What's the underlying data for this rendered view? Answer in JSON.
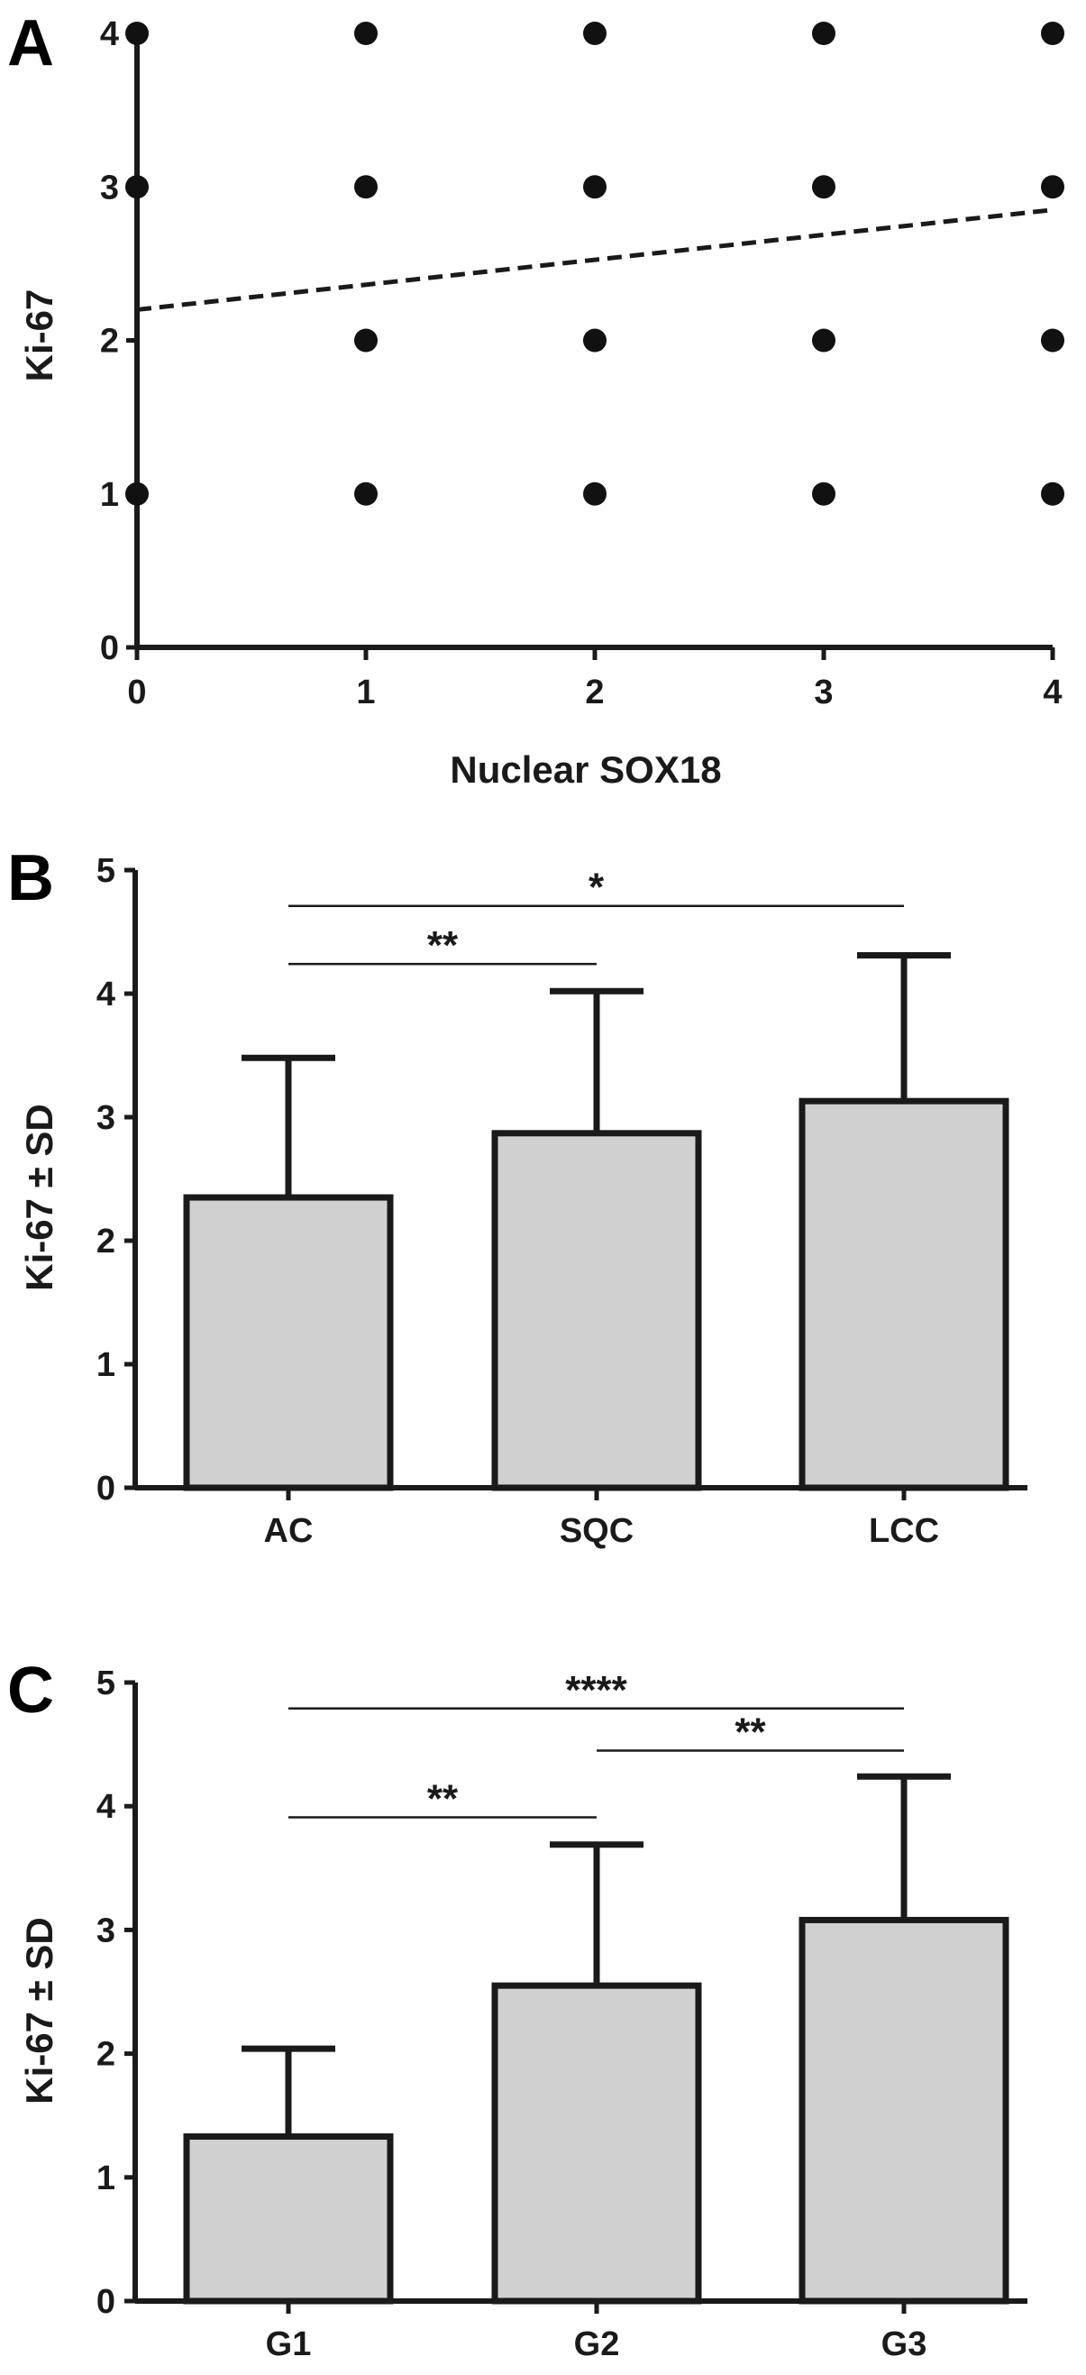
{
  "chart_data": [
    {
      "panel": "A",
      "type": "scatter",
      "xlabel": "Nuclear SOX18",
      "ylabel": "Ki-67",
      "xlim": [
        0,
        4
      ],
      "ylim": [
        0,
        4
      ],
      "xticks": [
        "0",
        "1",
        "2",
        "3",
        "4"
      ],
      "yticks": [
        "0",
        "1",
        "2",
        "3",
        "4"
      ],
      "points": [
        {
          "x": 0,
          "y": 1
        },
        {
          "x": 0,
          "y": 3
        },
        {
          "x": 0,
          "y": 4
        },
        {
          "x": 1,
          "y": 1
        },
        {
          "x": 1,
          "y": 2
        },
        {
          "x": 1,
          "y": 3
        },
        {
          "x": 1,
          "y": 4
        },
        {
          "x": 2,
          "y": 1
        },
        {
          "x": 2,
          "y": 2
        },
        {
          "x": 2,
          "y": 3
        },
        {
          "x": 2,
          "y": 4
        },
        {
          "x": 3,
          "y": 1
        },
        {
          "x": 3,
          "y": 2
        },
        {
          "x": 3,
          "y": 3
        },
        {
          "x": 3,
          "y": 4
        },
        {
          "x": 4,
          "y": 1
        },
        {
          "x": 4,
          "y": 2
        },
        {
          "x": 4,
          "y": 3
        },
        {
          "x": 4,
          "y": 4
        }
      ],
      "trend_line": {
        "style": "dashed",
        "x": [
          0,
          4
        ],
        "y": [
          2.2,
          2.85
        ]
      }
    },
    {
      "panel": "B",
      "type": "bar",
      "categories": [
        "AC",
        "SQC",
        "LCC"
      ],
      "values": [
        2.35,
        2.87,
        3.13
      ],
      "error_sd": [
        1.13,
        1.15,
        1.18
      ],
      "ylabel": "Ki-67 ± SD",
      "ylim": [
        0,
        5
      ],
      "yticks": [
        "0",
        "1",
        "2",
        "3",
        "4",
        "5"
      ],
      "bar_color": "#d0d0d0",
      "significance": [
        {
          "from": 0,
          "to": 1,
          "level": 4.24,
          "label": "**"
        },
        {
          "from": 0,
          "to": 2,
          "level": 4.71,
          "label": "*"
        }
      ]
    },
    {
      "panel": "C",
      "type": "bar",
      "categories": [
        "G1",
        "G2",
        "G3"
      ],
      "values": [
        1.33,
        2.55,
        3.08
      ],
      "error_sd": [
        0.71,
        1.14,
        1.16
      ],
      "ylabel": "Ki-67 ± SD",
      "ylim": [
        0,
        5
      ],
      "yticks": [
        "0",
        "1",
        "2",
        "3",
        "4",
        "5"
      ],
      "bar_color": "#d0d0d0",
      "significance": [
        {
          "from": 0,
          "to": 1,
          "level": 3.91,
          "label": "**"
        },
        {
          "from": 1,
          "to": 2,
          "level": 4.45,
          "label": "**"
        },
        {
          "from": 0,
          "to": 2,
          "level": 4.79,
          "label": "****"
        }
      ]
    }
  ]
}
